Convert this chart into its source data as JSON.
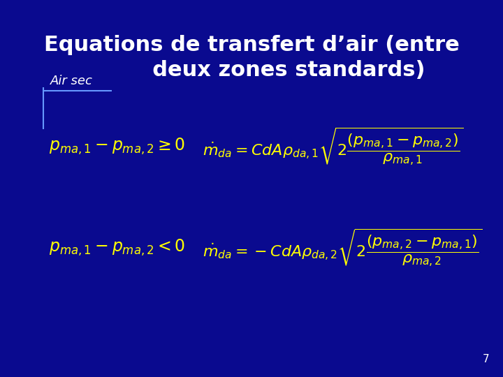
{
  "title_line1": "Equations de transfert d’air (entre",
  "title_line2": "deux zones standards)",
  "subtitle": "Air sec",
  "bg_color": "#0a0a8f",
  "title_color": "#FFFFFF",
  "subtitle_color": "#FFFFFF",
  "formula_color": "#FFFF00",
  "page_number": "7",
  "page_color": "#FFFFFF",
  "cross_color": "#6699FF",
  "eq1_left": "$\\mathbf{p_{ma,1} - p_{ma,2} \\geq 0}$",
  "eq1_right": "$\\mathbf{\\dot{m}_{da} = CdA\\rho_{da,1}\\sqrt{2\\dfrac{\\left(p_{ma,1} - p_{ma,2}\\right)}{\\rho_{ma,1}}}}$",
  "eq2_left": "$\\mathbf{p_{ma,1} - p_{ma,2} < 0}$",
  "eq2_right": "$\\mathbf{\\dot{m}_{da} = -CdA\\rho_{da,2}\\sqrt{2\\dfrac{\\left(p_{ma,2} - p_{ma,1}\\right)}{\\rho_{ma,2}}}}$"
}
